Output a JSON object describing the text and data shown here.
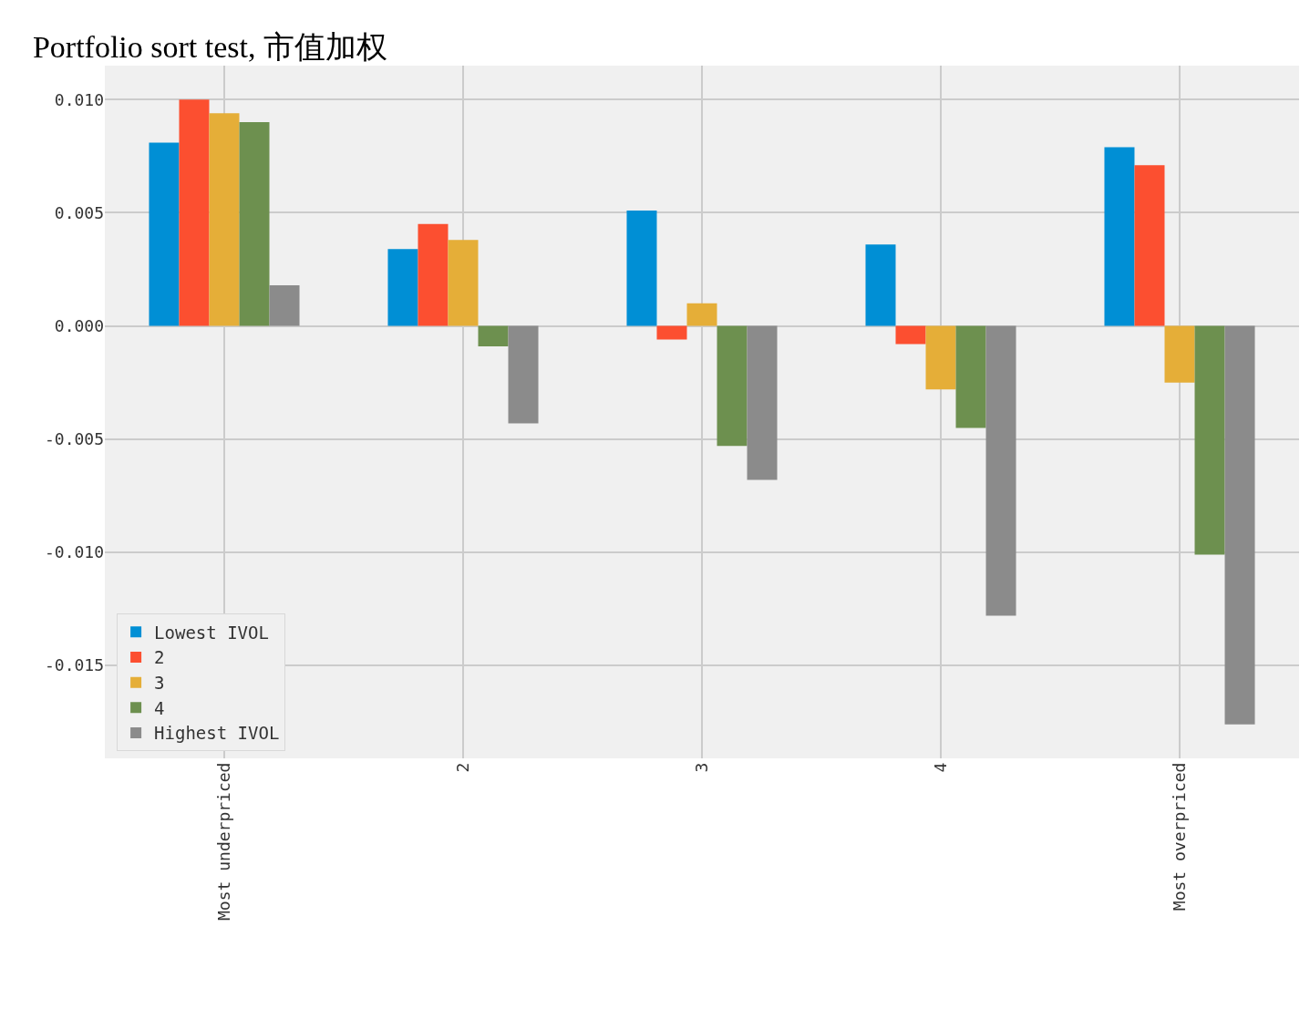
{
  "chart_data": {
    "type": "bar",
    "title": "Portfolio sort test, 市值加权",
    "categories": [
      "Most underpriced",
      "2",
      "3",
      "4",
      "Most overpriced"
    ],
    "series": [
      {
        "name": "Lowest IVOL",
        "color": "#008fd5",
        "values": [
          0.0081,
          0.0034,
          0.0051,
          0.0036,
          0.0079
        ]
      },
      {
        "name": "2",
        "color": "#fc4f30",
        "values": [
          0.01,
          0.0045,
          -0.0006,
          -0.0008,
          0.0071
        ]
      },
      {
        "name": "3",
        "color": "#e5ae38",
        "values": [
          0.0094,
          0.0038,
          0.001,
          -0.0028,
          -0.0025
        ]
      },
      {
        "name": "4",
        "color": "#6d904f",
        "values": [
          0.009,
          -0.0009,
          -0.0053,
          -0.0045,
          -0.0101
        ]
      },
      {
        "name": "Highest IVOL",
        "color": "#8b8b8b",
        "values": [
          0.0018,
          -0.0043,
          -0.0068,
          -0.0128,
          -0.0176
        ]
      }
    ],
    "ylim": [
      -0.0191,
      0.0115
    ],
    "yticks": [
      {
        "value": -0.015,
        "label": "-0.015"
      },
      {
        "value": -0.01,
        "label": "-0.010"
      },
      {
        "value": -0.005,
        "label": "-0.005"
      },
      {
        "value": 0,
        "label": "0.000"
      },
      {
        "value": 0.005,
        "label": "0.005"
      },
      {
        "value": 0.01,
        "label": "0.010"
      }
    ],
    "grid": true,
    "legend": "bottom left"
  }
}
